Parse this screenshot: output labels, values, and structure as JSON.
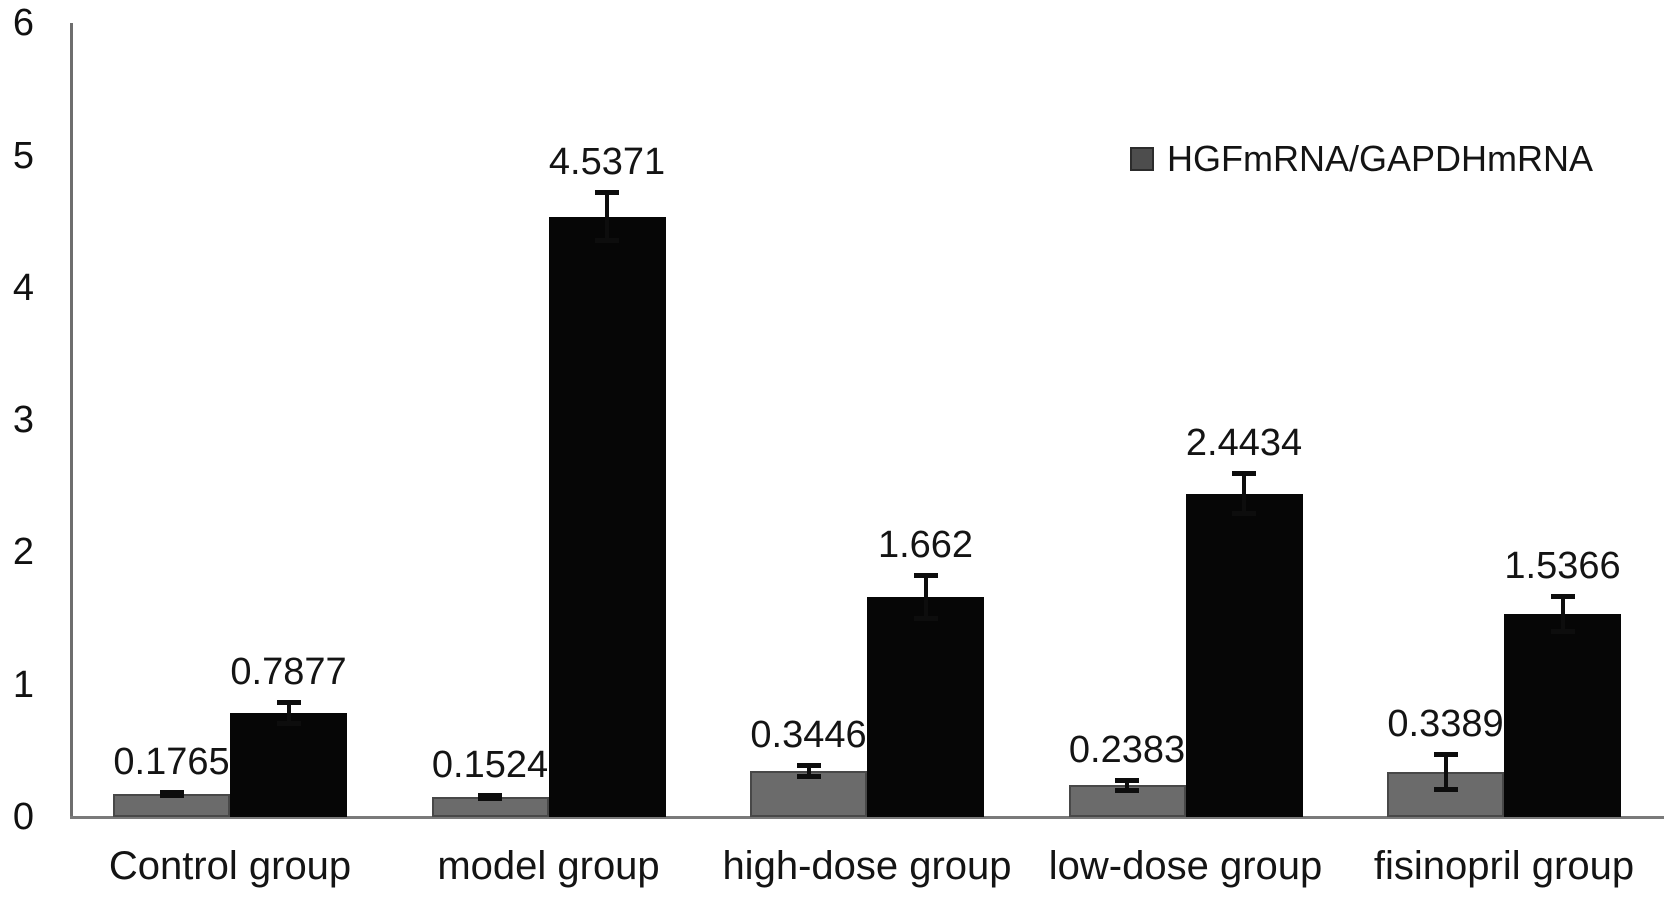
{
  "figure": {
    "background_color": "#ffffff",
    "text_color": "#141414",
    "axis_line_color": "#6e6e6e"
  },
  "legend": {
    "label": "HGFmRNA/GAPDHmRNA",
    "swatch_color": "#4d4d4d",
    "swatch_border_color": "#2c2c2c"
  },
  "chart_data": {
    "type": "bar",
    "title": "",
    "xlabel": "",
    "ylabel": "",
    "categories": [
      "Control group",
      "model group",
      "high-dose group",
      "low-dose group",
      "fisinopril group"
    ],
    "series": [
      {
        "name": "HGFmRNA/GAPDHmRNA",
        "color": "#6b6b6b",
        "border_color": "#484848",
        "values": [
          0.1765,
          0.1524,
          0.3446,
          0.2383,
          0.3389
        ],
        "labels": [
          "0.1765",
          "0.1524",
          "0.3446",
          "0.2383",
          "0.3389"
        ],
        "errors": [
          0.03,
          0.03,
          0.06,
          0.06,
          0.15
        ]
      },
      {
        "name": "",
        "color": "#060606",
        "border_color": "#060606",
        "values": [
          0.7877,
          4.5371,
          1.662,
          2.4434,
          1.5366
        ],
        "labels": [
          "0.7877",
          "4.5371",
          "1.662",
          "2.4434",
          "1.5366"
        ],
        "errors": [
          0.1,
          0.2,
          0.18,
          0.17,
          0.15
        ]
      }
    ],
    "yticks": [
      "0",
      "1",
      "2",
      "3",
      "4",
      "5",
      "6"
    ],
    "ylim": [
      0,
      6
    ],
    "grid": false,
    "error_bars": true,
    "legend_position": "top-right"
  }
}
